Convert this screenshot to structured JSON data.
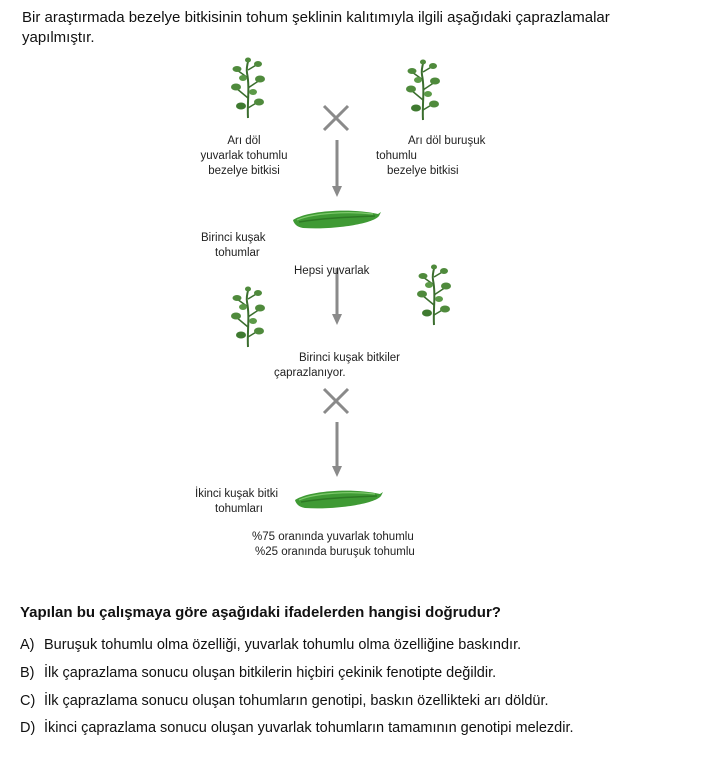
{
  "intro": {
    "line1": "Bir araştırmada bezelye bitkisinin tohum şeklinin kalıtımıyla ilgili aşağıdaki çaprazlamalar",
    "line2": "yapılmıştır."
  },
  "diagram": {
    "parent_left": [
      "Arı döl",
      "yuvarlak tohumlu",
      "bezelye bitkisi"
    ],
    "parent_right": [
      "Arı döl buruşuk",
      "tohumlu",
      "bezelye bitkisi"
    ],
    "f1_seeds": [
      "Birinci kuşak",
      "tohumlar"
    ],
    "f1_result": "Hepsi yuvarlak",
    "f1_cross": [
      "Birinci kuşak bitkiler",
      "çaprazlanıyor."
    ],
    "f2_seeds": [
      "İkinci kuşak bitki",
      "tohumları"
    ],
    "f2_result": [
      "%75 oranında yuvarlak tohumlu",
      "%25 oranında buruşuk tohumlu"
    ],
    "colors": {
      "arrow": "#8a8a8a",
      "cross": "#8a8a8a",
      "pod": "#3f9a34",
      "leaf": "#3b6e2e"
    },
    "icons": [
      "pea-plant-icon",
      "cross-icon",
      "down-arrow-icon",
      "pea-pod-icon"
    ]
  },
  "question": "Yapılan bu çalışmaya göre aşağıdaki ifadelerden hangisi doğrudur?",
  "options": [
    {
      "letter": "A)",
      "text": "Buruşuk tohumlu olma özelliği, yuvarlak tohumlu olma özelliğine baskındır."
    },
    {
      "letter": "B)",
      "text": "İlk çaprazlama sonucu oluşan bitkilerin hiçbiri çekinik fenotipte değildir."
    },
    {
      "letter": "C)",
      "text": "İlk çaprazlama sonucu oluşan tohumların genotipi, baskın özellikteki arı döldür."
    },
    {
      "letter": "D)",
      "text": "İkinci çaprazlama sonucu oluşan yuvarlak tohumların tamamının genotipi melezdir."
    }
  ]
}
